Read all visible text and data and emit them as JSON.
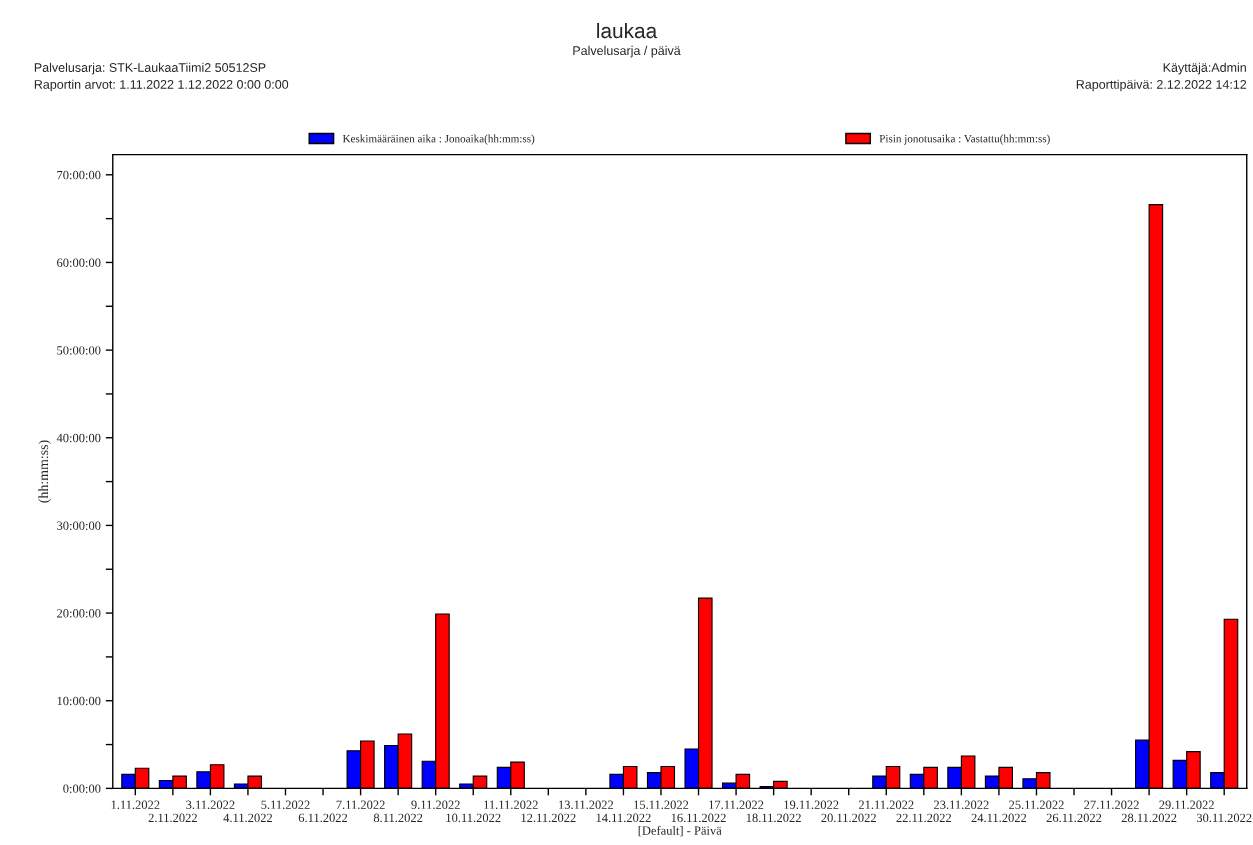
{
  "chart_data": {
    "type": "bar",
    "title": "laukaa",
    "subtitle": "Palvelusarja / päivä",
    "xlabel": "[Default] - Päivä",
    "ylabel": "(hh:mm:ss)",
    "annotations": [
      "Palvelusarja: STK-LaukaaTiimi2 50512SP",
      "Raportin arvot: 1.11.2022 1.12.2022 0:00 0:00",
      "Käyttäjä:Admin",
      "Raporttipäivä: 2.12.2022 14:12"
    ],
    "categories": [
      "1.11.2022",
      "2.11.2022",
      "3.11.2022",
      "4.11.2022",
      "5.11.2022",
      "6.11.2022",
      "7.11.2022",
      "8.11.2022",
      "9.11.2022",
      "10.11.2022",
      "11.11.2022",
      "12.11.2022",
      "13.11.2022",
      "14.11.2022",
      "15.11.2022",
      "16.11.2022",
      "17.11.2022",
      "18.11.2022",
      "19.11.2022",
      "20.11.2022",
      "21.11.2022",
      "22.11.2022",
      "23.11.2022",
      "24.11.2022",
      "25.11.2022",
      "26.11.2022",
      "27.11.2022",
      "28.11.2022",
      "29.11.2022",
      "30.11.2022"
    ],
    "series": [
      {
        "name": "Keskimääräinen aika : Jonoaika(hh:mm:ss)",
        "color": "#0000ff",
        "values": [
          1.6,
          0.9,
          1.9,
          0.5,
          null,
          null,
          4.3,
          4.9,
          3.1,
          0.5,
          2.4,
          null,
          null,
          1.6,
          1.8,
          4.5,
          0.6,
          0.2,
          null,
          null,
          1.4,
          1.6,
          2.4,
          1.4,
          1.1,
          null,
          null,
          5.5,
          3.2,
          1.8
        ]
      },
      {
        "name": "Pisin jonotusaika : Vastattu(hh:mm:ss)",
        "color": "#ff0000",
        "values": [
          2.3,
          1.4,
          2.7,
          1.4,
          null,
          null,
          5.4,
          6.2,
          19.9,
          1.4,
          3.0,
          null,
          null,
          2.5,
          2.5,
          21.7,
          1.6,
          0.8,
          null,
          null,
          2.5,
          2.4,
          3.7,
          2.4,
          1.8,
          null,
          null,
          66.6,
          4.2,
          19.3
        ]
      }
    ],
    "ylim": [
      0,
      72.3
    ],
    "yticks": [
      {
        "value": 0,
        "label": "0:00:00"
      },
      {
        "value": 5,
        "label": null
      },
      {
        "value": 10,
        "label": "10:00:00"
      },
      {
        "value": 15,
        "label": null
      },
      {
        "value": 20,
        "label": "20:00:00"
      },
      {
        "value": 25,
        "label": null
      },
      {
        "value": 30,
        "label": "30:00:00"
      },
      {
        "value": 35,
        "label": null
      },
      {
        "value": 40,
        "label": "40:00:00"
      },
      {
        "value": 45,
        "label": null
      },
      {
        "value": 50,
        "label": "50:00:00"
      },
      {
        "value": 55,
        "label": null
      },
      {
        "value": 60,
        "label": "60:00:00"
      },
      {
        "value": 65,
        "label": null
      },
      {
        "value": 70,
        "label": "70:00:00"
      }
    ],
    "grid": false,
    "legend": "top"
  }
}
